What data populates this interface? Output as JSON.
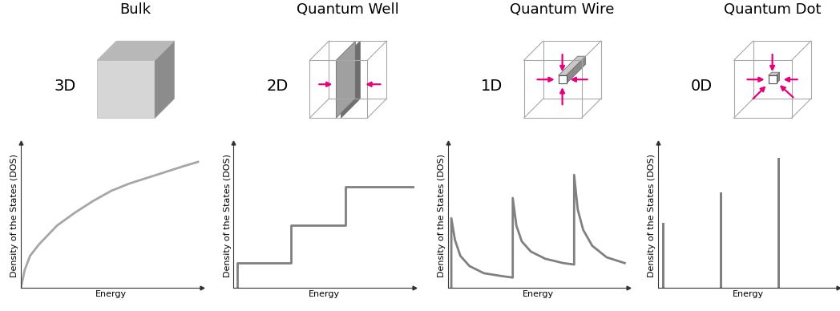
{
  "chart_data": [
    {
      "type": "line",
      "title": "Bulk",
      "annotations": [
        "3D"
      ],
      "x_label": "Energy",
      "y_label": "Density of the States (DOS)",
      "x": [
        0,
        0.2,
        0.5,
        1,
        2,
        3,
        4,
        5,
        6,
        7,
        8,
        9,
        9.8
      ],
      "values": [
        0,
        1.2,
        2.2,
        3.0,
        4.3,
        5.2,
        6.0,
        6.7,
        7.2,
        7.6,
        8.0,
        8.4,
        8.7
      ],
      "color": "#a6a6a6",
      "xlim": [
        0,
        10
      ],
      "ylim": [
        0,
        10
      ],
      "tick_labels": false
    },
    {
      "type": "line",
      "title": "Quantum Well",
      "annotations": [
        "2D"
      ],
      "x_label": "Energy",
      "y_label": "Density of the States (DOS)",
      "x": [
        0.2,
        0.2,
        3.2,
        3.2,
        6.2,
        6.2,
        10
      ],
      "values": [
        0,
        1.7,
        1.7,
        4.3,
        4.3,
        7.0,
        7.0
      ],
      "color": "#808080",
      "xlim": [
        0,
        10
      ],
      "ylim": [
        0,
        10
      ],
      "tick_labels": false
    },
    {
      "type": "line",
      "title": "Quantum Wire",
      "annotations": [
        "1D"
      ],
      "x_label": "Energy",
      "y_label": "Density of the States (DOS)",
      "x": [
        0.2,
        0.2,
        0.4,
        0.7,
        1.2,
        2.0,
        3.0,
        3.6,
        3.6,
        3.8,
        4.1,
        4.6,
        5.4,
        6.4,
        7.0,
        7.0,
        7.2,
        7.5,
        8.0,
        8.8,
        9.8
      ],
      "values": [
        0,
        4.8,
        3.3,
        2.2,
        1.5,
        1.0,
        0.8,
        0.7,
        6.2,
        4.3,
        3.2,
        2.5,
        2.0,
        1.7,
        1.6,
        7.8,
        5.4,
        4.0,
        2.9,
        2.1,
        1.7
      ],
      "color": "#808080",
      "xlim": [
        0,
        10
      ],
      "ylim": [
        0,
        10
      ],
      "tick_labels": false
    },
    {
      "type": "bar",
      "title": "Quantum Dot",
      "annotations": [
        "0D"
      ],
      "x_label": "Energy",
      "y_label": "Density of the States (DOS)",
      "x": [
        0.3,
        3.5,
        6.7
      ],
      "values": [
        4.5,
        6.6,
        9.0
      ],
      "color": "#808080",
      "xlim": [
        0,
        10
      ],
      "ylim": [
        0,
        10
      ],
      "tick_labels": false
    }
  ]
}
